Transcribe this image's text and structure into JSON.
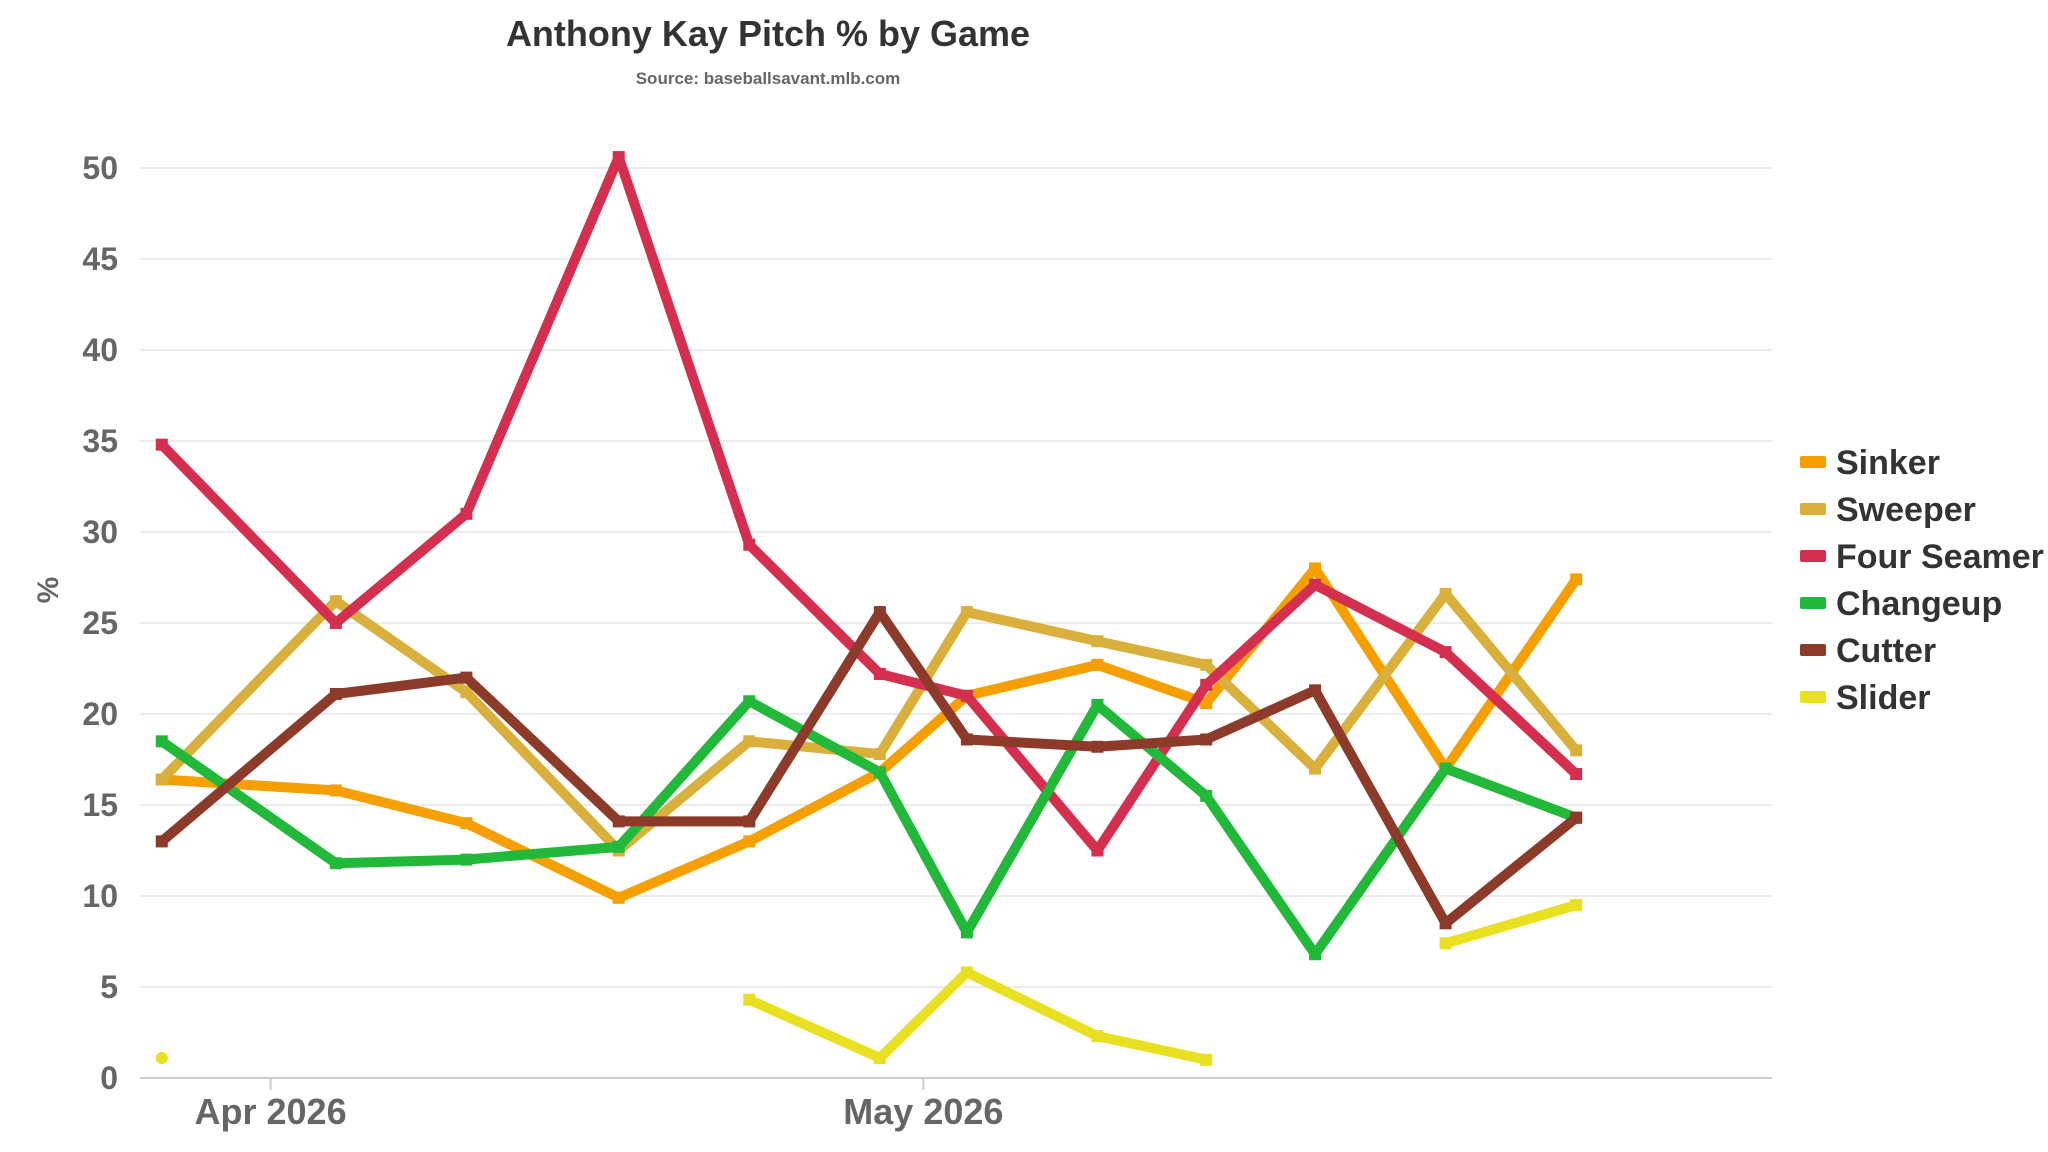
{
  "chart_data": {
    "type": "line",
    "title": "Anthony Kay Pitch % by Game",
    "subtitle": "Source: baseballsavant.mlb.com",
    "xlabel": "",
    "ylabel": "%",
    "ylim": [
      0,
      50
    ],
    "yticks": [
      0,
      5,
      10,
      15,
      20,
      25,
      30,
      35,
      40,
      45,
      50
    ],
    "xlim": [
      "2026-03-26",
      "2026-06-09"
    ],
    "xticks": [
      {
        "date": "2026-04-01",
        "label": "Apr 2026"
      },
      {
        "date": "2026-05-01",
        "label": "May 2026"
      }
    ],
    "grid": true,
    "legend": "right",
    "x": [
      "2026-03-27",
      "2026-04-04",
      "2026-04-10",
      "2026-04-17",
      "2026-04-23",
      "2026-04-29",
      "2026-05-03",
      "2026-05-09",
      "2026-05-14",
      "2026-05-19",
      "2026-05-25",
      "2026-05-31"
    ],
    "series": [
      {
        "name": "Sinker",
        "color": "#f5a000",
        "values": [
          16.4,
          15.8,
          14.0,
          9.9,
          13.0,
          16.8,
          21.0,
          22.7,
          20.6,
          28.0,
          17.0,
          27.4
        ]
      },
      {
        "name": "Sweeper",
        "color": "#d9b03c",
        "values": [
          16.4,
          26.2,
          21.2,
          12.5,
          18.5,
          17.8,
          25.6,
          24.0,
          22.7,
          17.0,
          26.6,
          18.0
        ]
      },
      {
        "name": "Four Seamer",
        "color": "#d42f4e",
        "values": [
          34.8,
          25.0,
          31.0,
          50.6,
          29.3,
          22.2,
          21.0,
          12.5,
          21.6,
          27.1,
          23.4,
          16.7
        ]
      },
      {
        "name": "Changeup",
        "color": "#22b83a",
        "values": [
          18.5,
          11.8,
          12.0,
          12.7,
          20.7,
          16.8,
          8.0,
          20.5,
          15.5,
          6.8,
          17.0,
          14.3
        ]
      },
      {
        "name": "Cutter",
        "color": "#8c3a2a",
        "values": [
          13.0,
          21.1,
          22.0,
          14.1,
          14.1,
          25.6,
          18.6,
          18.2,
          18.6,
          21.3,
          8.5,
          14.3
        ]
      },
      {
        "name": "Slider",
        "color": "#e8e020",
        "values": [
          1.1,
          null,
          null,
          null,
          4.3,
          1.1,
          5.8,
          2.3,
          1.0,
          null,
          7.4,
          9.5
        ]
      }
    ]
  }
}
